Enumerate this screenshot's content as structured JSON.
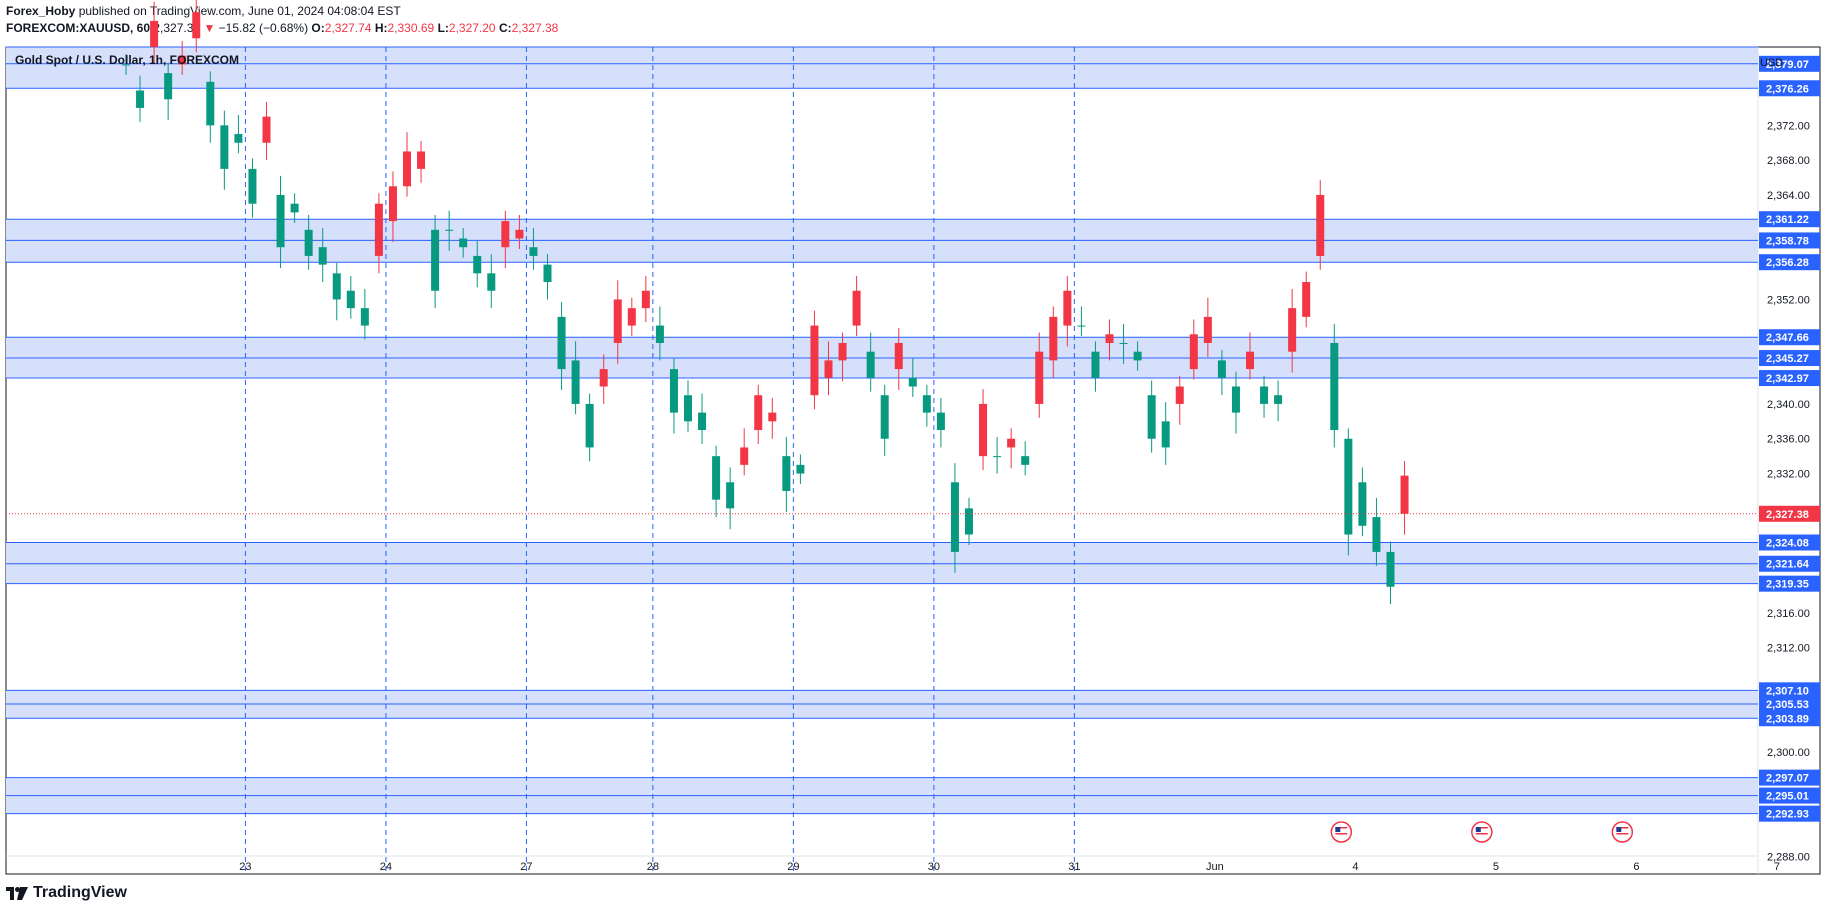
{
  "header": {
    "author": "Forex_Hoby",
    "published": "published on TradingView.com, June 01, 2024 04:08:04 EST",
    "symbol": "FOREXCOM:XAUUSD, 60",
    "last": "2,327.38",
    "change_arrow": "▼",
    "change": "−15.82 (−0.68%)",
    "o_label": "O:",
    "o_value": "2,327.74",
    "h_label": "H:",
    "h_value": "2,330.69",
    "l_label": "L:",
    "l_value": "2,327.20",
    "c_label": "C:",
    "c_value": "2,327.38"
  },
  "footer": {
    "brand": "TradingView",
    "logo_icon": "tradingview-logo-icon"
  },
  "colors": {
    "up": "#089981",
    "down": "#f23645",
    "zone_fill": "#d6e0fb",
    "zone_line": "#2962ff",
    "grid_dash": "#2962ff",
    "last_price": "#f23645",
    "axis_text": "#131722"
  },
  "chart_data": {
    "type": "candlestick",
    "title": "Gold Spot / U.S. Dollar, 1h, FOREXCOM",
    "currency": "USD",
    "ylim": [
      2286.0,
      2381.0
    ],
    "y_ticks": [
      "2,372.00",
      "2,368.00",
      "2,364.00",
      "2,352.00",
      "2,340.00",
      "2,336.00",
      "2,332.00",
      "2,316.00",
      "2,312.00",
      "2,300.00",
      "2,288.00"
    ],
    "x_ticks": [
      "23",
      "24",
      "27",
      "28",
      "29",
      "30",
      "31",
      "Jun",
      "4",
      "5",
      "6",
      "7"
    ],
    "x_tick_bars": [
      9,
      19,
      29,
      38,
      48,
      58,
      68,
      78,
      88,
      98,
      108,
      118
    ],
    "session_breaks": [
      9,
      19,
      29,
      38,
      48,
      58,
      68
    ],
    "last_price": 2327.38,
    "last_price_label": "2,327.38",
    "zones": [
      {
        "top": 2381.0,
        "mid": 2379.07,
        "bottom": 2376.26,
        "labels": [
          "2,379.07",
          "2,376.26"
        ]
      },
      {
        "top": 2361.22,
        "mid": 2358.78,
        "bottom": 2356.28,
        "labels": [
          "2,361.22",
          "2,358.78",
          "2,356.28"
        ]
      },
      {
        "top": 2347.66,
        "mid": 2345.27,
        "bottom": 2342.97,
        "labels": [
          "2,347.66",
          "2,345.27",
          "2,342.97"
        ]
      },
      {
        "top": 2324.08,
        "mid": 2321.64,
        "bottom": 2319.35,
        "labels": [
          "2,324.08",
          "2,321.64",
          "2,319.35"
        ]
      },
      {
        "top": 2307.1,
        "mid": 2305.53,
        "bottom": 2303.89,
        "labels": [
          "2,307.10",
          "2,305.53",
          "2,303.89"
        ]
      },
      {
        "top": 2297.07,
        "mid": 2295.01,
        "bottom": 2292.93,
        "labels": [
          "2,297.07",
          "2,295.01",
          "2,292.93"
        ]
      }
    ],
    "event_markers": [
      {
        "bar": 86.5,
        "icon": "us-flag-icon"
      },
      {
        "bar": 96.5,
        "icon": "us-flag-icon"
      },
      {
        "bar": 106.5,
        "icon": "us-flag-icon"
      }
    ],
    "close": [
      2379,
      2376,
      2381,
      2378,
      2379,
      2382,
      2377,
      2372,
      2371,
      2367,
      2370,
      2364,
      2363,
      2360,
      2358,
      2355,
      2353,
      2351,
      2357,
      2361,
      2365,
      2367,
      2360,
      2360,
      2359,
      2357,
      2355,
      2358,
      2359,
      2358,
      2356,
      2350,
      2345,
      2340,
      2342,
      2347,
      2349,
      2351,
      2349,
      2344,
      2341,
      2339,
      2334,
      2331,
      2333,
      2337,
      2338,
      2334,
      2333,
      2341,
      2343,
      2345,
      2349,
      2346,
      2341,
      2344,
      2343,
      2341,
      2339,
      2331,
      2328,
      2334,
      2334,
      2335,
      2334,
      2340,
      2345,
      2349,
      2349,
      2346,
      2347,
      2347,
      2346,
      2341,
      2338,
      2340,
      2344,
      2347,
      2345,
      2342,
      2344,
      2342,
      2341,
      2346,
      2350,
      2357,
      2347,
      2336,
      2331,
      2327,
      2323,
      2327.38
    ],
    "open_offset": [
      0,
      -2,
      3,
      -3,
      1,
      3,
      -5,
      -5,
      -1,
      -4,
      3,
      -6,
      -1,
      -3,
      -2,
      -3,
      -2,
      -2,
      6,
      4,
      4,
      2,
      -7,
      0,
      -1,
      -2,
      -2,
      3,
      1,
      -1,
      -2,
      -6,
      -5,
      -5,
      2,
      5,
      2,
      2,
      -2,
      -5,
      -3,
      -2,
      -5,
      -3,
      2,
      4,
      1,
      -4,
      -1,
      8,
      2,
      2,
      4,
      -3,
      -5,
      3,
      -1,
      -2,
      -2,
      -8,
      -3,
      6,
      0,
      1,
      -1,
      6,
      5,
      4,
      0,
      -3,
      1,
      0,
      -1,
      -5,
      -3,
      2,
      4,
      3,
      -2,
      -3,
      2,
      -2,
      -1,
      5,
      4,
      7,
      -10,
      -11,
      -5,
      -4,
      -4,
      4.38
    ]
  }
}
